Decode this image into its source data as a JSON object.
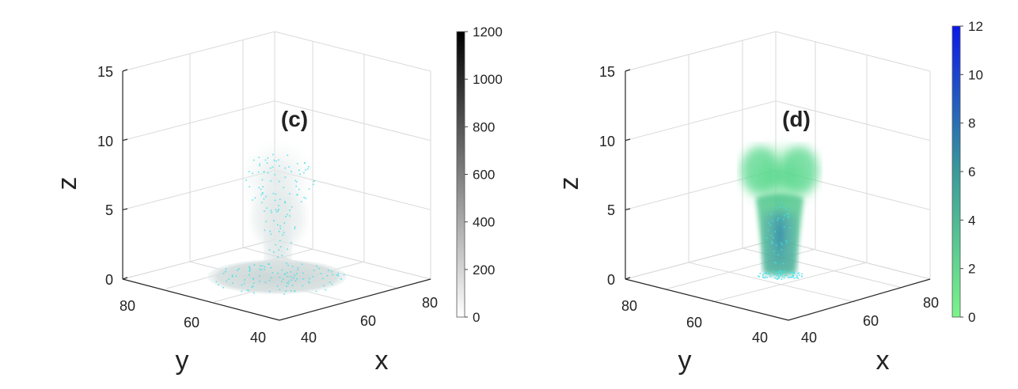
{
  "chart_data": [
    {
      "type": "volume-scatter3d",
      "panel_label": "(c)",
      "xlabel": "x",
      "ylabel": "y",
      "zlabel": "z",
      "x_ticks": [
        "40",
        "60",
        "80"
      ],
      "y_ticks": [
        "40",
        "60",
        "80"
      ],
      "z_ticks": [
        "0",
        "5",
        "10",
        "15"
      ],
      "xlim": [
        40,
        85
      ],
      "ylim": [
        40,
        85
      ],
      "zlim": [
        0,
        15
      ],
      "colorbar": {
        "ticks": [
          "0",
          "200",
          "400",
          "600",
          "800",
          "1000",
          "1200"
        ],
        "range": [
          0,
          1200
        ],
        "colors": [
          "#ffffff",
          "#000000"
        ]
      },
      "particle_color": "#40e0e8",
      "grid": true
    },
    {
      "type": "volume-scatter3d",
      "panel_label": "(d)",
      "xlabel": "x",
      "ylabel": "y",
      "zlabel": "z",
      "x_ticks": [
        "40",
        "60",
        "80"
      ],
      "y_ticks": [
        "40",
        "60",
        "80"
      ],
      "z_ticks": [
        "0",
        "5",
        "10",
        "15"
      ],
      "xlim": [
        40,
        85
      ],
      "ylim": [
        40,
        85
      ],
      "zlim": [
        0,
        15
      ],
      "colorbar": {
        "ticks": [
          "0",
          "2",
          "4",
          "6",
          "8",
          "10",
          "12"
        ],
        "range": [
          0,
          12
        ],
        "colors": [
          "#7cf58a",
          "#3a9a9a",
          "#0a18e8"
        ]
      },
      "particle_color": "#40e0e8",
      "grid": true
    }
  ]
}
